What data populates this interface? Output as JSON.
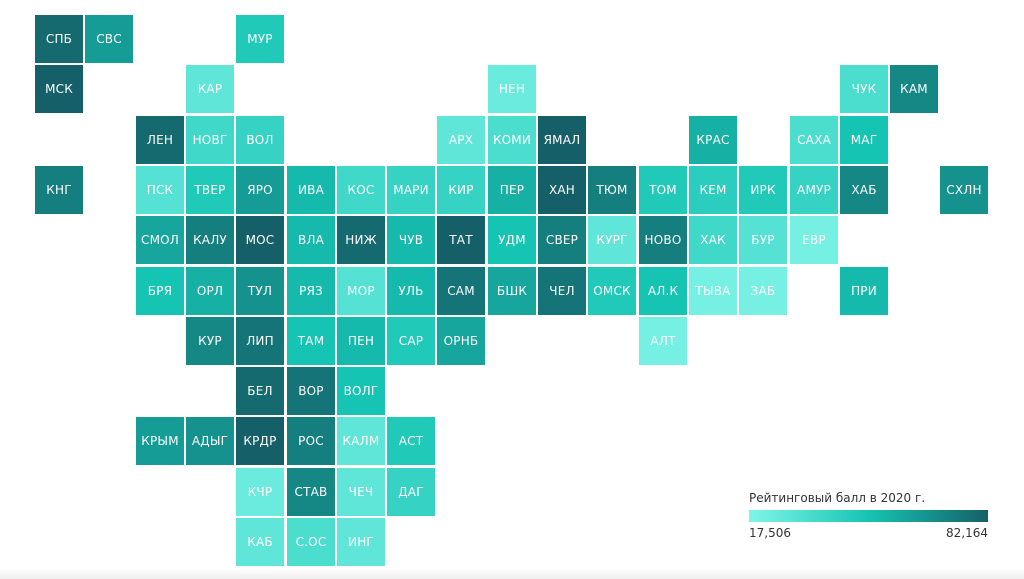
{
  "legend": {
    "title": "Рейтинговый балл в 2020 г.",
    "min_label": "17,506",
    "max_label": "82,164",
    "color_low": "#7ff5e8",
    "color_high": "#156068"
  },
  "regions": [
    {
      "label": "СПБ",
      "row": 0,
      "col": 0,
      "level": 0.95
    },
    {
      "label": "СВС",
      "row": 0,
      "col": 1,
      "level": 0.7
    },
    {
      "label": "МУР",
      "row": 0,
      "col": 4,
      "level": 0.45
    },
    {
      "label": "МСК",
      "row": 1,
      "col": 0,
      "level": 1.0
    },
    {
      "label": "КАР",
      "row": 1,
      "col": 3,
      "level": 0.15
    },
    {
      "label": "НЕН",
      "row": 1,
      "col": 9,
      "level": 0.1
    },
    {
      "label": "ЧУК",
      "row": 1,
      "col": 16,
      "level": 0.25
    },
    {
      "label": "КАМ",
      "row": 1,
      "col": 17,
      "level": 0.8
    },
    {
      "label": "ЛЕН",
      "row": 2,
      "col": 2,
      "level": 0.95
    },
    {
      "label": "НОВГ",
      "row": 2,
      "col": 3,
      "level": 0.3
    },
    {
      "label": "ВОЛ",
      "row": 2,
      "col": 4,
      "level": 0.35
    },
    {
      "label": "АРХ",
      "row": 2,
      "col": 8,
      "level": 0.15
    },
    {
      "label": "КОМИ",
      "row": 2,
      "col": 9,
      "level": 0.25
    },
    {
      "label": "ЯМАЛ",
      "row": 2,
      "col": 10,
      "level": 1.0
    },
    {
      "label": "КРАС",
      "row": 2,
      "col": 13,
      "level": 0.6
    },
    {
      "label": "САХА",
      "row": 2,
      "col": 15,
      "level": 0.25
    },
    {
      "label": "МАГ",
      "row": 2,
      "col": 16,
      "level": 0.5
    },
    {
      "label": "КНГ",
      "row": 3,
      "col": 0,
      "level": 0.85
    },
    {
      "label": "ПСК",
      "row": 3,
      "col": 2,
      "level": 0.2
    },
    {
      "label": "ТВЕР",
      "row": 3,
      "col": 3,
      "level": 0.45
    },
    {
      "label": "ЯРО",
      "row": 3,
      "col": 4,
      "level": 0.7
    },
    {
      "label": "ИВА",
      "row": 3,
      "col": 5,
      "level": 0.55
    },
    {
      "label": "КОС",
      "row": 3,
      "col": 6,
      "level": 0.3
    },
    {
      "label": "МАРИ",
      "row": 3,
      "col": 7,
      "level": 0.35
    },
    {
      "label": "КИР",
      "row": 3,
      "col": 8,
      "level": 0.35
    },
    {
      "label": "ПЕР",
      "row": 3,
      "col": 9,
      "level": 0.6
    },
    {
      "label": "ХАН",
      "row": 3,
      "col": 10,
      "level": 1.0
    },
    {
      "label": "ТЮМ",
      "row": 3,
      "col": 11,
      "level": 0.85
    },
    {
      "label": "ТОМ",
      "row": 3,
      "col": 12,
      "level": 0.45
    },
    {
      "label": "КЕМ",
      "row": 3,
      "col": 13,
      "level": 0.4
    },
    {
      "label": "ИРК",
      "row": 3,
      "col": 14,
      "level": 0.45
    },
    {
      "label": "АМУР",
      "row": 3,
      "col": 15,
      "level": 0.35
    },
    {
      "label": "ХАБ",
      "row": 3,
      "col": 16,
      "level": 0.8
    },
    {
      "label": "СХЛН",
      "row": 3,
      "col": 18,
      "level": 0.75
    },
    {
      "label": "СМОЛ",
      "row": 4,
      "col": 2,
      "level": 0.65
    },
    {
      "label": "КАЛУ",
      "row": 4,
      "col": 3,
      "level": 0.85
    },
    {
      "label": "МОС",
      "row": 4,
      "col": 4,
      "level": 1.0
    },
    {
      "label": "ВЛА",
      "row": 4,
      "col": 5,
      "level": 0.55
    },
    {
      "label": "НИЖ",
      "row": 4,
      "col": 6,
      "level": 0.95
    },
    {
      "label": "ЧУВ",
      "row": 4,
      "col": 7,
      "level": 0.55
    },
    {
      "label": "ТАТ",
      "row": 4,
      "col": 8,
      "level": 1.0
    },
    {
      "label": "УДМ",
      "row": 4,
      "col": 9,
      "level": 0.5
    },
    {
      "label": "СВЕР",
      "row": 4,
      "col": 10,
      "level": 0.85
    },
    {
      "label": "КУРГ",
      "row": 4,
      "col": 11,
      "level": 0.15
    },
    {
      "label": "НОВО",
      "row": 4,
      "col": 12,
      "level": 0.85
    },
    {
      "label": "ХАК",
      "row": 4,
      "col": 13,
      "level": 0.3
    },
    {
      "label": "БУР",
      "row": 4,
      "col": 14,
      "level": 0.2
    },
    {
      "label": "ЕВР",
      "row": 4,
      "col": 15,
      "level": 0.05
    },
    {
      "label": "БРЯ",
      "row": 5,
      "col": 2,
      "level": 0.5
    },
    {
      "label": "ОРЛ",
      "row": 5,
      "col": 3,
      "level": 0.6
    },
    {
      "label": "ТУЛ",
      "row": 5,
      "col": 4,
      "level": 0.75
    },
    {
      "label": "РЯЗ",
      "row": 5,
      "col": 5,
      "level": 0.55
    },
    {
      "label": "МОР",
      "row": 5,
      "col": 6,
      "level": 0.2
    },
    {
      "label": "УЛЬ",
      "row": 5,
      "col": 7,
      "level": 0.55
    },
    {
      "label": "САМ",
      "row": 5,
      "col": 8,
      "level": 0.9
    },
    {
      "label": "БШК",
      "row": 5,
      "col": 9,
      "level": 0.65
    },
    {
      "label": "ЧЕЛ",
      "row": 5,
      "col": 10,
      "level": 0.9
    },
    {
      "label": "ОМСК",
      "row": 5,
      "col": 11,
      "level": 0.45
    },
    {
      "label": "АЛ.К",
      "row": 5,
      "col": 12,
      "level": 0.5
    },
    {
      "label": "ТЫВА",
      "row": 5,
      "col": 13,
      "level": 0.05
    },
    {
      "label": "ЗАБ",
      "row": 5,
      "col": 14,
      "level": 0.05
    },
    {
      "label": "ПРИ",
      "row": 5,
      "col": 16,
      "level": 0.55
    },
    {
      "label": "КУР",
      "row": 6,
      "col": 3,
      "level": 0.8
    },
    {
      "label": "ЛИП",
      "row": 6,
      "col": 4,
      "level": 0.9
    },
    {
      "label": "ТАМ",
      "row": 6,
      "col": 5,
      "level": 0.5
    },
    {
      "label": "ПЕН",
      "row": 6,
      "col": 6,
      "level": 0.55
    },
    {
      "label": "САР",
      "row": 6,
      "col": 7,
      "level": 0.45
    },
    {
      "label": "ОРНБ",
      "row": 6,
      "col": 8,
      "level": 0.65
    },
    {
      "label": "АЛТ",
      "row": 6,
      "col": 12,
      "level": 0.05
    },
    {
      "label": "БЕЛ",
      "row": 7,
      "col": 4,
      "level": 0.95
    },
    {
      "label": "ВОР",
      "row": 7,
      "col": 5,
      "level": 0.9
    },
    {
      "label": "ВОЛГ",
      "row": 7,
      "col": 6,
      "level": 0.5
    },
    {
      "label": "КРЫМ",
      "row": 8,
      "col": 2,
      "level": 0.7
    },
    {
      "label": "АДЫГ",
      "row": 8,
      "col": 3,
      "level": 0.75
    },
    {
      "label": "КРДР",
      "row": 8,
      "col": 4,
      "level": 1.0
    },
    {
      "label": "РОС",
      "row": 8,
      "col": 5,
      "level": 0.85
    },
    {
      "label": "КАЛМ",
      "row": 8,
      "col": 6,
      "level": 0.15
    },
    {
      "label": "АСТ",
      "row": 8,
      "col": 7,
      "level": 0.45
    },
    {
      "label": "КЧР",
      "row": 9,
      "col": 4,
      "level": 0.1
    },
    {
      "label": "СТАВ",
      "row": 9,
      "col": 5,
      "level": 0.8
    },
    {
      "label": "ЧЕЧ",
      "row": 9,
      "col": 6,
      "level": 0.15
    },
    {
      "label": "ДАГ",
      "row": 9,
      "col": 7,
      "level": 0.35
    },
    {
      "label": "КАБ",
      "row": 10,
      "col": 4,
      "level": 0.15
    },
    {
      "label": "С.ОС",
      "row": 10,
      "col": 5,
      "level": 0.25
    },
    {
      "label": "ИНГ",
      "row": 10,
      "col": 6,
      "level": 0.15
    }
  ]
}
